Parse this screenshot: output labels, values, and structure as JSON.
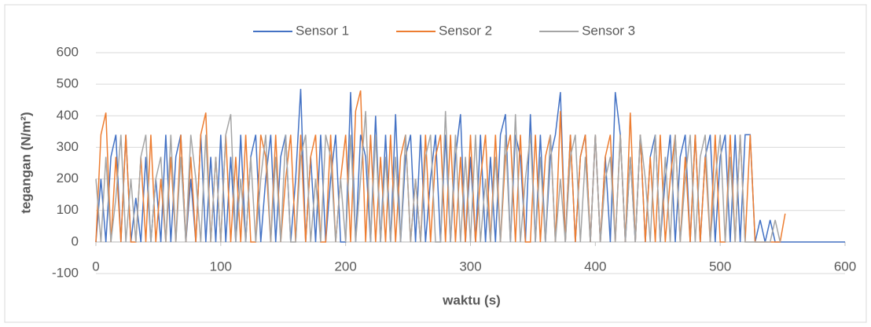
{
  "chart_data": {
    "type": "line",
    "x_label": "waktu (s)",
    "y_label": "tegangan (N/m²)",
    "xlim": [
      0,
      600
    ],
    "xticks": [
      0,
      100,
      200,
      300,
      400,
      500,
      600
    ],
    "ylim": [
      -100,
      600
    ],
    "yticks": [
      -100,
      0,
      100,
      200,
      300,
      400,
      500,
      600
    ],
    "grid": true,
    "legend": "top",
    "x": [
      0,
      4,
      8,
      12,
      16,
      20,
      24,
      28,
      32,
      36,
      40,
      44,
      48,
      52,
      56,
      60,
      64,
      68,
      72,
      76,
      80,
      84,
      88,
      92,
      96,
      100,
      104,
      108,
      112,
      116,
      120,
      124,
      128,
      132,
      136,
      140,
      144,
      148,
      152,
      156,
      160,
      164,
      168,
      172,
      176,
      180,
      184,
      188,
      192,
      196,
      200,
      204,
      208,
      212,
      216,
      220,
      224,
      228,
      232,
      236,
      240,
      244,
      248,
      252,
      256,
      260,
      264,
      268,
      272,
      276,
      280,
      284,
      288,
      292,
      296,
      300,
      304,
      308,
      312,
      316,
      320,
      324,
      328,
      332,
      336,
      340,
      344,
      348,
      352,
      356,
      360,
      364,
      368,
      372,
      376,
      380,
      384,
      388,
      392,
      396,
      400,
      404,
      408,
      412,
      416,
      420,
      424,
      428,
      432,
      436,
      440,
      444,
      448,
      452,
      456,
      460,
      464,
      468,
      472,
      476,
      480,
      484,
      488,
      492,
      496,
      500,
      504,
      508,
      512,
      516,
      520,
      524,
      528,
      532,
      536,
      540,
      544,
      548,
      552,
      556,
      560,
      564,
      568,
      572,
      576,
      580,
      584,
      588,
      592,
      596,
      600
    ],
    "series": [
      {
        "name": "Sensor 1",
        "color": "#4472c4",
        "values": [
          0,
          200,
          0,
          270,
          340,
          0,
          340,
          0,
          140,
          0,
          270,
          0,
          200,
          0,
          340,
          0,
          270,
          340,
          0,
          200,
          0,
          340,
          0,
          270,
          0,
          340,
          0,
          270,
          0,
          340,
          0,
          270,
          340,
          0,
          200,
          340,
          0,
          270,
          340,
          0,
          200,
          485,
          0,
          270,
          0,
          340,
          0,
          200,
          340,
          0,
          0,
          475,
          0,
          340,
          270,
          0,
          400,
          0,
          340,
          0,
          405,
          0,
          270,
          340,
          0,
          340,
          0,
          200,
          340,
          0,
          340,
          0,
          270,
          405,
          0,
          270,
          0,
          340,
          0,
          270,
          0,
          340,
          405,
          0,
          340,
          270,
          0,
          405,
          0,
          340,
          0,
          270,
          340,
          475,
          0,
          340,
          0,
          270,
          340,
          0,
          340,
          0,
          270,
          0,
          475,
          340,
          0,
          270,
          0,
          340,
          0,
          270,
          340,
          0,
          200,
          340,
          0,
          270,
          340,
          0,
          340,
          0,
          270,
          340,
          0,
          270,
          340,
          0,
          340,
          0,
          340,
          340,
          0,
          70,
          0,
          70,
          0,
          0,
          0,
          0,
          0,
          0,
          0,
          0,
          0,
          0,
          0,
          0,
          0,
          0,
          0
        ]
      },
      {
        "name": "Sensor 2",
        "color": "#ed7d31",
        "values": [
          0,
          340,
          410,
          0,
          270,
          0,
          340,
          0,
          0,
          270,
          0,
          340,
          0,
          200,
          0,
          270,
          0,
          340,
          0,
          270,
          0,
          340,
          410,
          0,
          270,
          0,
          340,
          0,
          270,
          0,
          340,
          0,
          0,
          340,
          270,
          0,
          340,
          0,
          200,
          340,
          0,
          340,
          0,
          270,
          340,
          0,
          0,
          340,
          0,
          200,
          340,
          0,
          415,
          480,
          0,
          340,
          0,
          270,
          0,
          340,
          0,
          270,
          340,
          0,
          200,
          0,
          340,
          0,
          270,
          340,
          0,
          340,
          0,
          270,
          0,
          340,
          0,
          200,
          340,
          0,
          340,
          0,
          270,
          340,
          0,
          340,
          0,
          0,
          340,
          0,
          270,
          340,
          0,
          415,
          0,
          340,
          0,
          270,
          340,
          0,
          340,
          0,
          270,
          340,
          0,
          340,
          0,
          410,
          0,
          340,
          0,
          270,
          0,
          340,
          0,
          200,
          340,
          0,
          270,
          0,
          340,
          0,
          270,
          0,
          340,
          0,
          0,
          340,
          0,
          340,
          0,
          340,
          0,
          0,
          0,
          0,
          0,
          0,
          90,
          null,
          null,
          null,
          null,
          null,
          null,
          null,
          null,
          null,
          null,
          null,
          null
        ]
      },
      {
        "name": "Sensor 3",
        "color": "#a5a5a5",
        "values": [
          200,
          0,
          270,
          0,
          140,
          340,
          0,
          200,
          0,
          270,
          340,
          0,
          200,
          270,
          0,
          340,
          0,
          270,
          0,
          340,
          200,
          0,
          340,
          0,
          270,
          0,
          340,
          405,
          0,
          200,
          0,
          270,
          0,
          200,
          340,
          0,
          270,
          0,
          340,
          0,
          0,
          270,
          340,
          0,
          200,
          0,
          340,
          270,
          0,
          200,
          0,
          340,
          0,
          200,
          415,
          0,
          340,
          0,
          270,
          0,
          270,
          0,
          340,
          0,
          200,
          0,
          270,
          340,
          0,
          0,
          415,
          0,
          340,
          0,
          270,
          0,
          340,
          0,
          200,
          0,
          270,
          0,
          340,
          0,
          405,
          0,
          200,
          340,
          0,
          270,
          0,
          340,
          0,
          200,
          0,
          270,
          340,
          0,
          270,
          0,
          340,
          0,
          200,
          270,
          0,
          340,
          0,
          270,
          0,
          340,
          200,
          0,
          340,
          0,
          270,
          0,
          340,
          0,
          200,
          340,
          0,
          270,
          340,
          0,
          200,
          340,
          0,
          270,
          0,
          340,
          0,
          0,
          0,
          0,
          0,
          0,
          70,
          0,
          null,
          null,
          null,
          null,
          null,
          null,
          null,
          null,
          null,
          null,
          null,
          null,
          null
        ]
      }
    ]
  }
}
